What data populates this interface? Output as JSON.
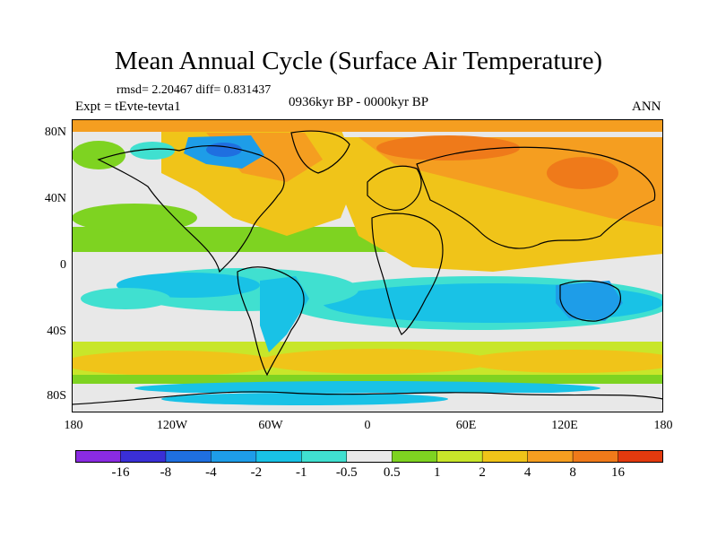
{
  "title": "Mean Annual Cycle (Surface Air Temperature)",
  "stats": "rmsd= 2.20467 diff= 0.831437",
  "experiment": "Expt = tEvte-tevta1",
  "period": "0936kyr BP - 0000kyr BP",
  "season": "ANN",
  "lat_labels": [
    "80N",
    "40N",
    "0",
    "40S",
    "80S"
  ],
  "lon_labels": [
    "180",
    "120W",
    "60W",
    "0",
    "60E",
    "120E",
    "180"
  ],
  "colorbar": {
    "labels": [
      "-16",
      "-8",
      "-4",
      "-2",
      "-1",
      "-0.5",
      "0.5",
      "1",
      "2",
      "4",
      "8",
      "16"
    ],
    "colors": [
      "#8a2be2",
      "#3a2fd6",
      "#1f6fe0",
      "#1e9de8",
      "#19c2e6",
      "#40e0d0",
      "#e8e8e8",
      "#7ed321",
      "#c8e62a",
      "#f0c419",
      "#f59e20",
      "#ef7a1a",
      "#e23a0e"
    ]
  }
}
